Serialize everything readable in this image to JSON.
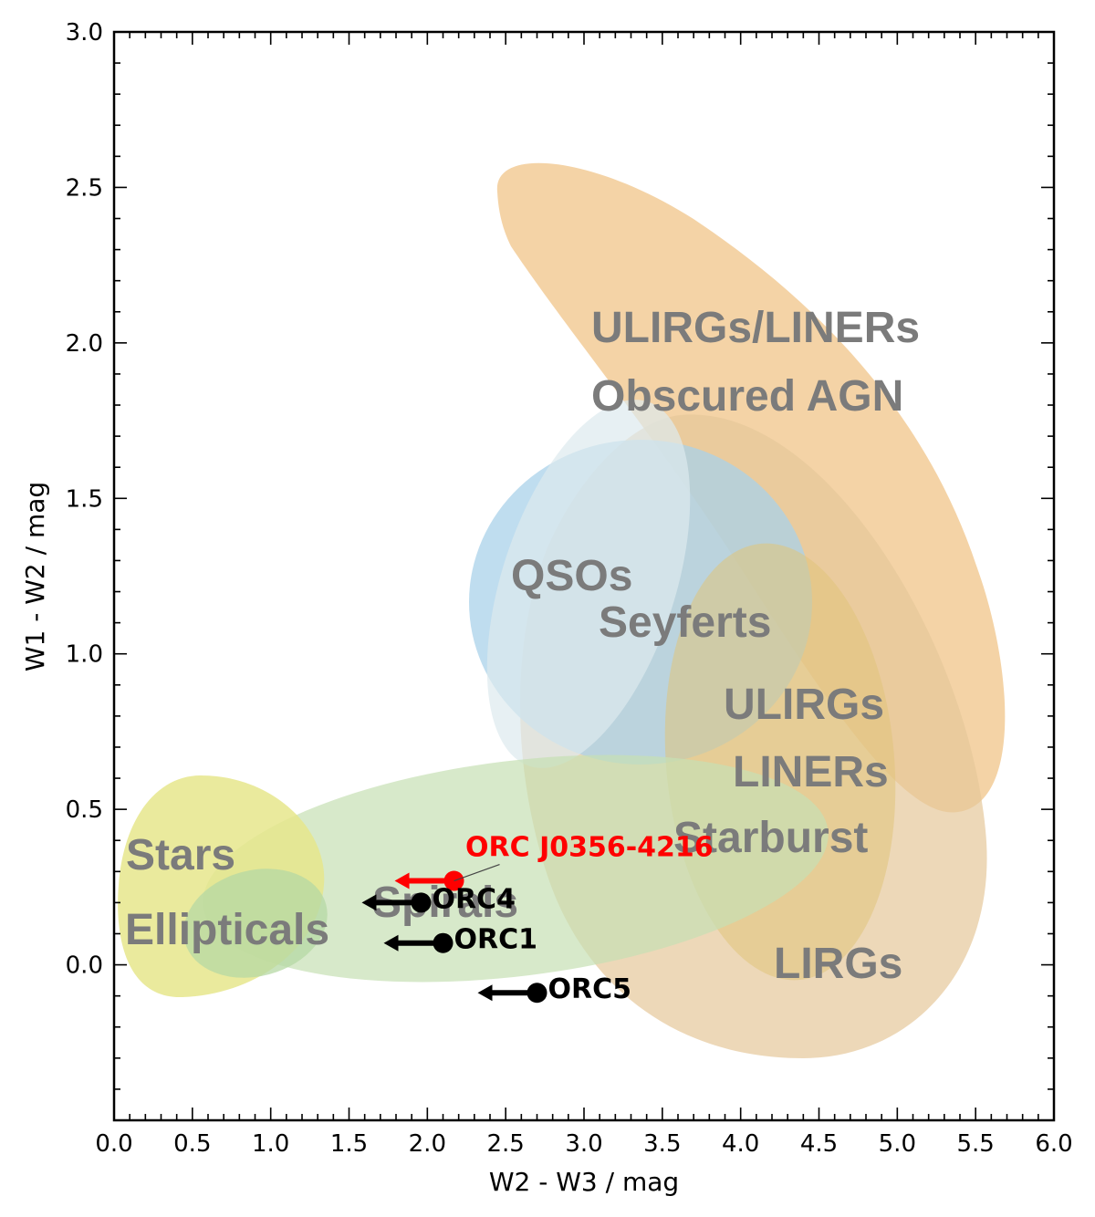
{
  "chart_data": {
    "type": "scatter",
    "xlabel": "W2 - W3 / mag",
    "ylabel": "W1 - W2 / mag",
    "xlim": [
      0.0,
      6.0
    ],
    "ylim": [
      -0.5,
      3.0
    ],
    "x_ticks": [
      "0.0",
      "0.5",
      "1.0",
      "1.5",
      "2.0",
      "2.5",
      "3.0",
      "3.5",
      "4.0",
      "4.5",
      "5.0",
      "5.5",
      "6.0"
    ],
    "y_ticks": [
      "0.0",
      "0.5",
      "1.0",
      "1.5",
      "2.0",
      "2.5",
      "3.0"
    ],
    "grid": false,
    "regions": [
      {
        "label": "ULIRGs/LINERs",
        "label2": "Obscured AGN",
        "color": "#f0c080",
        "center": [
          4.2,
          1.9
        ]
      },
      {
        "label": "LIRGs",
        "color": "#e8cc9e",
        "center": [
          4.2,
          0.8
        ]
      },
      {
        "label": "QSOs",
        "color": "#a6d0e8",
        "center": [
          3.45,
          1.15
        ]
      },
      {
        "label": "Seyferts",
        "color": "#d6e6ec",
        "center": [
          3.4,
          1.2
        ]
      },
      {
        "label": "ULIRGs",
        "label2": "LINERs",
        "label3": "Starburst",
        "color": "#e2c580",
        "center": [
          4.45,
          0.6
        ]
      },
      {
        "label": "Spirals",
        "color": "#c8e0b6",
        "center": [
          2.4,
          0.25
        ]
      },
      {
        "label": "Stars",
        "label2": "Ellipticals",
        "color": "#e8e890",
        "center": [
          0.55,
          0.25
        ]
      }
    ],
    "series": [
      {
        "name": "ORC J0356-4216",
        "color": "#ff0000",
        "x": 2.17,
        "y": 0.27,
        "upper_limit_x": true
      },
      {
        "name": "ORC4",
        "color": "#000000",
        "x": 1.96,
        "y": 0.2,
        "upper_limit_x": true
      },
      {
        "name": "ORC1",
        "color": "#000000",
        "x": 2.1,
        "y": 0.07,
        "upper_limit_x": true
      },
      {
        "name": "ORC5",
        "color": "#000000",
        "x": 2.7,
        "y": -0.09,
        "upper_limit_x": true
      }
    ]
  }
}
